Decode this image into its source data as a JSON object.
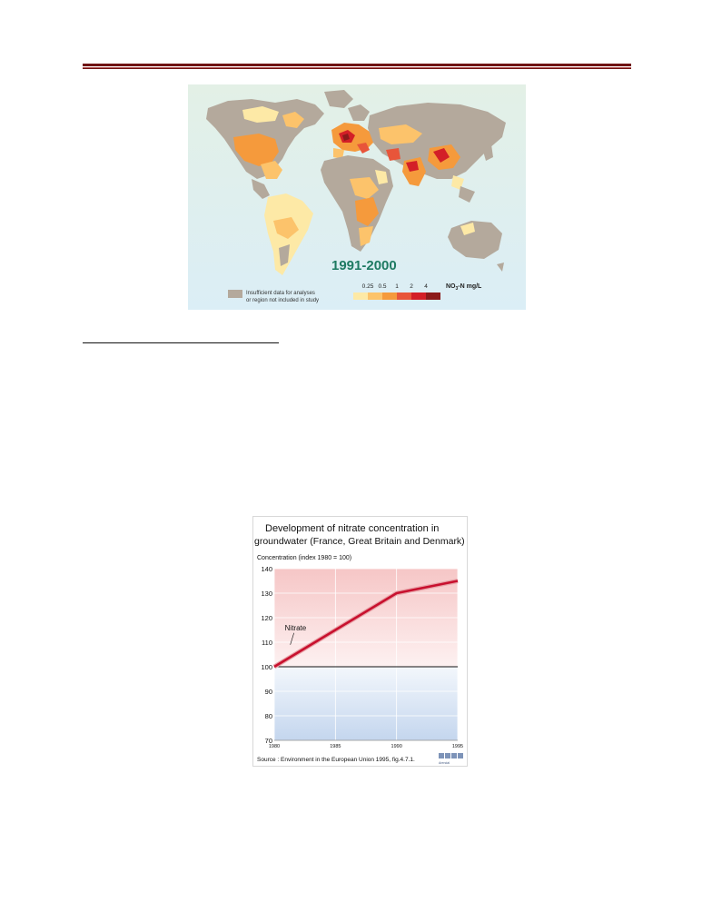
{
  "map": {
    "title": "1991-2000",
    "legend_no_data": "Insufficient data for analyses or region not included in study",
    "legend_no_data_line1": "Insufficient data for analyses",
    "legend_no_data_line2": "or region not included in study",
    "legend_values": [
      "0.25",
      "0.5",
      "1",
      "2",
      "4"
    ],
    "legend_unit_prefix": "NO",
    "legend_unit_sub": "3",
    "legend_unit_suffix": "-N mg/L",
    "legend_colors": [
      "#fde9a6",
      "#fcc36b",
      "#f59a3c",
      "#e8553a",
      "#d31f27",
      "#8b1a1a"
    ],
    "no_data_color": "#b4a99c",
    "ocean_color": "#e4f1ef"
  },
  "chart": {
    "title_line1": "Development of nitrate concentration in",
    "title_line2": "groundwater (France, Great Britain and Denmark)",
    "source": "Source : Environment in the European Union 1995, fig.4.7.1.",
    "logo_top": "GRID",
    "logo_bottom": "Arendal",
    "series_color": "#c8102e"
  },
  "chart_data": {
    "type": "line",
    "title": "Development of nitrate concentration in groundwater (France, Great Britain and Denmark)",
    "ylabel": "Concentration (index 1980 = 100)",
    "x": [
      1980,
      1985,
      1990,
      1995
    ],
    "xticks": [
      "1980",
      "1985",
      "1990",
      "1995"
    ],
    "ylim": [
      70,
      140
    ],
    "yticks": [
      70,
      80,
      90,
      100,
      110,
      120,
      130,
      140
    ],
    "reference_line": 100,
    "series": [
      {
        "name": "Nitrate",
        "x": [
          1980,
          1990,
          1995
        ],
        "values": [
          100,
          130,
          135
        ]
      }
    ]
  }
}
